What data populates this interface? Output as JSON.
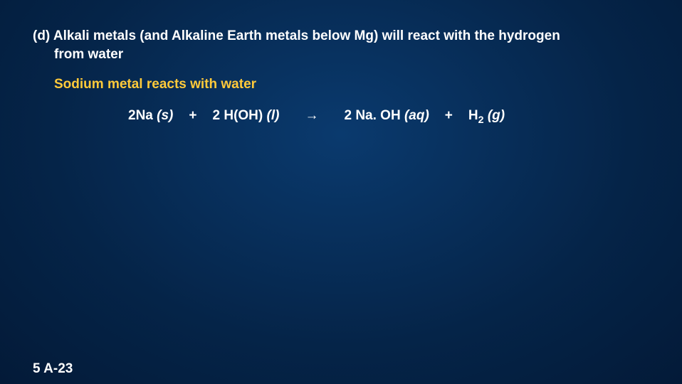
{
  "colors": {
    "background_center": "#0a3a6e",
    "background_mid": "#052448",
    "background_edge": "#031a38",
    "text_primary": "#ffffff",
    "text_accent": "#ffca3a"
  },
  "typography": {
    "font_family": "Arial",
    "heading_fontsize_pt": 14,
    "subheading_fontsize_pt": 14,
    "equation_fontsize_pt": 14,
    "pagenum_fontsize_pt": 14,
    "weight": "bold"
  },
  "heading": {
    "prefix": "(d)",
    "line1": "Alkali metals (and Alkaline Earth metals below Mg) will react with the hydrogen",
    "line2": "from water"
  },
  "subheading": "Sodium metal reacts with water",
  "equation": {
    "reactant1": {
      "coef": "2",
      "formula": "Na",
      "state": "(s)"
    },
    "plus1": "+",
    "reactant2": {
      "coef": "2",
      "formula": "H(OH)",
      "state": "(l)"
    },
    "arrow": "→",
    "product1": {
      "coef": "2",
      "formula": "Na. OH",
      "state": "(aq)"
    },
    "plus2": "+",
    "product2": {
      "formula_pre": "H",
      "subscript": "2",
      "state": "(g)"
    }
  },
  "pagenum": "5 A-23"
}
